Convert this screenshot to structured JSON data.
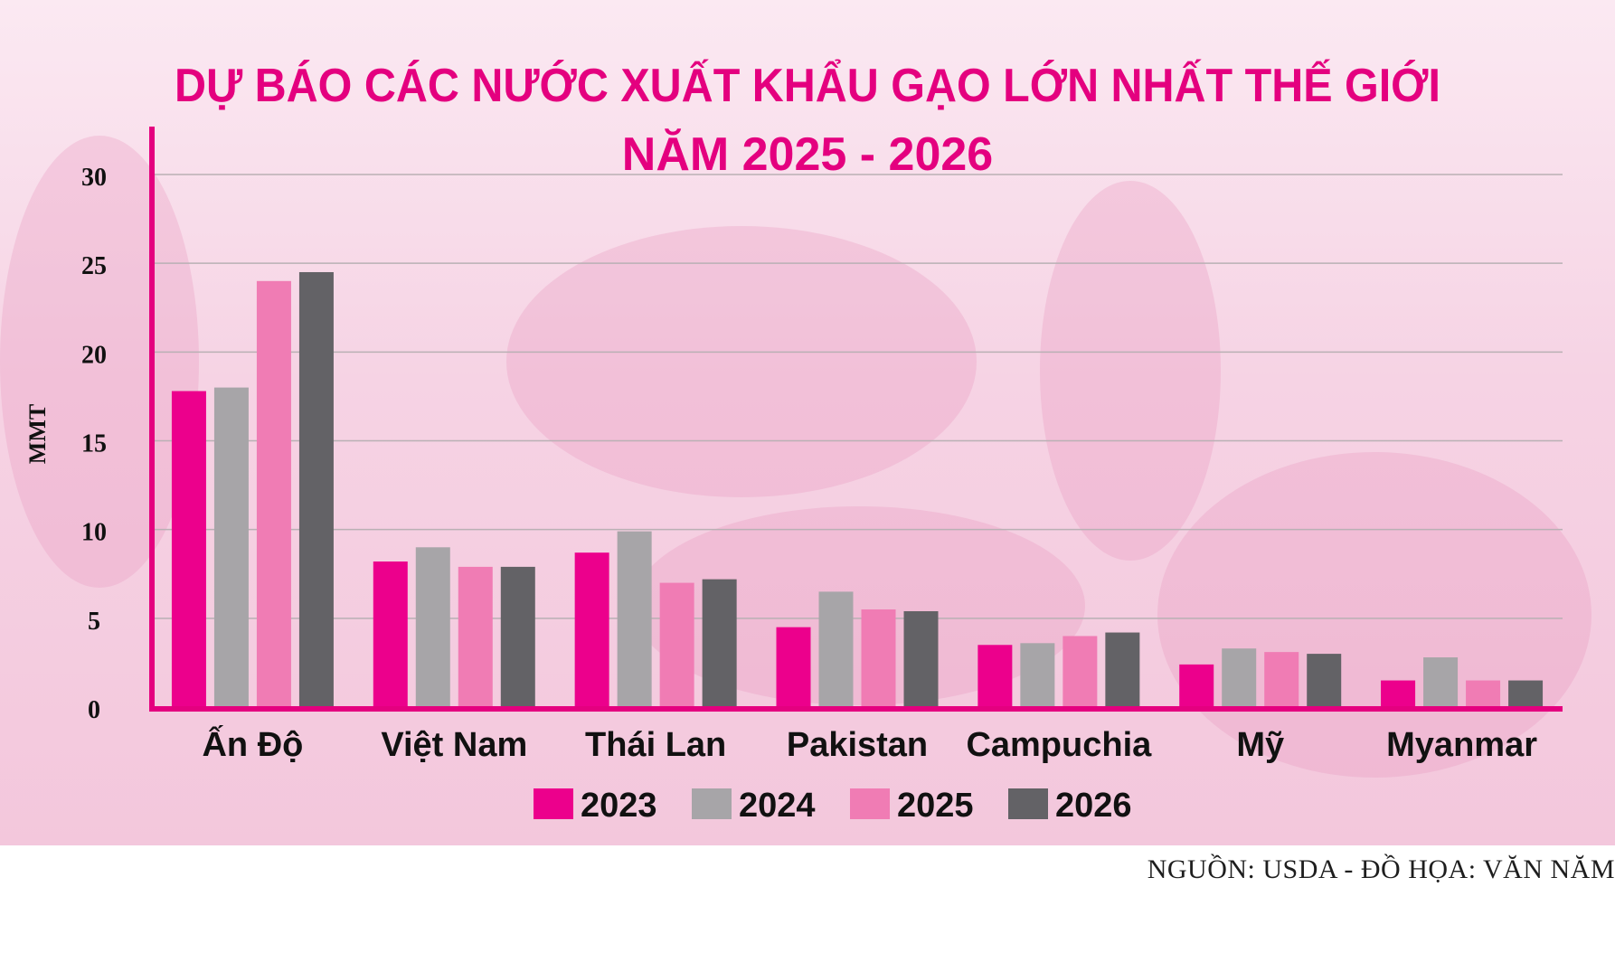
{
  "colors": {
    "title": "#e4007f",
    "axis": "#e4007f",
    "grid": "#b9b0b4",
    "background": "#f6d3e4"
  },
  "chart_data": {
    "type": "bar",
    "title_line1": "DỰ BÁO CÁC NƯỚC XUẤT KHẨU GẠO LỚN NHẤT THẾ GIỚI",
    "title_line2": "NĂM 2025 - 2026",
    "ylabel": "MMT",
    "ylim": [
      0,
      30
    ],
    "yticks": [
      0,
      5,
      10,
      15,
      20,
      25,
      30
    ],
    "grid": true,
    "legend_position": "bottom",
    "categories": [
      "Ấn Độ",
      "Việt Nam",
      "Thái Lan",
      "Pakistan",
      "Campuchia",
      "Mỹ",
      "Myanmar"
    ],
    "series": [
      {
        "name": "2023",
        "color": "#ec008c",
        "values": [
          17.8,
          8.2,
          8.7,
          4.5,
          3.5,
          2.4,
          1.5
        ]
      },
      {
        "name": "2024",
        "color": "#a7a5a8",
        "values": [
          18.0,
          9.0,
          9.9,
          6.5,
          3.6,
          3.3,
          2.8
        ]
      },
      {
        "name": "2025",
        "color": "#f07cb4",
        "values": [
          24.0,
          7.9,
          7.0,
          5.5,
          4.0,
          3.1,
          1.5
        ]
      },
      {
        "name": "2026",
        "color": "#636266",
        "values": [
          24.5,
          7.9,
          7.2,
          5.4,
          4.2,
          3.0,
          1.5
        ]
      }
    ]
  },
  "source": "NGUỒN: USDA  - ĐỒ HỌA: VĂN NĂM"
}
